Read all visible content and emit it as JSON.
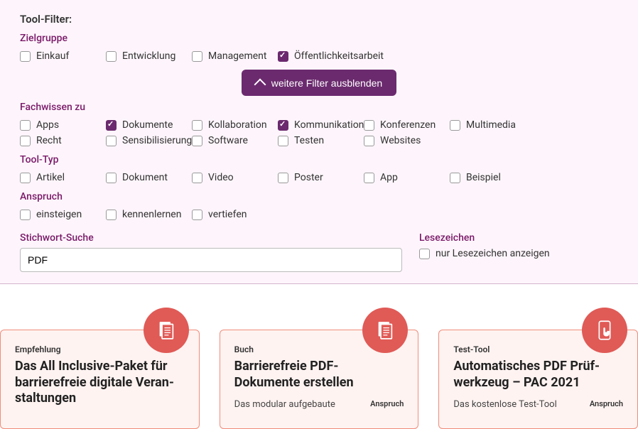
{
  "filter_title": "Tool-Filter:",
  "zielgruppe": {
    "label": "Zielgruppe",
    "items": [
      {
        "label": "Einkauf",
        "checked": false
      },
      {
        "label": "Entwicklung",
        "checked": false
      },
      {
        "label": "Management",
        "checked": false
      },
      {
        "label": "Öffentlichkeitsarbeit",
        "checked": true
      }
    ]
  },
  "toggle_label": "weitere Filter ausblenden",
  "fachwissen": {
    "label": "Fachwissen zu",
    "items": [
      {
        "label": "Apps",
        "checked": false
      },
      {
        "label": "Dokumente",
        "checked": true
      },
      {
        "label": "Kollaboration",
        "checked": false
      },
      {
        "label": "Kommunikation",
        "checked": true
      },
      {
        "label": "Konferenzen",
        "checked": false
      },
      {
        "label": "Multimedia",
        "checked": false
      },
      {
        "label": "Recht",
        "checked": false
      },
      {
        "label": "Sensibilisierung",
        "checked": false
      },
      {
        "label": "Software",
        "checked": false
      },
      {
        "label": "Testen",
        "checked": false
      },
      {
        "label": "Websites",
        "checked": false
      }
    ]
  },
  "tooltyp": {
    "label": "Tool-Typ",
    "items": [
      {
        "label": "Artikel",
        "checked": false
      },
      {
        "label": "Dokument",
        "checked": false
      },
      {
        "label": "Video",
        "checked": false
      },
      {
        "label": "Poster",
        "checked": false
      },
      {
        "label": "App",
        "checked": false
      },
      {
        "label": "Beispiel",
        "checked": false
      }
    ]
  },
  "anspruch": {
    "label": "Anspruch",
    "items": [
      {
        "label": "einsteigen",
        "checked": false
      },
      {
        "label": "kennenlernen",
        "checked": false
      },
      {
        "label": "vertiefen",
        "checked": false
      }
    ]
  },
  "search": {
    "label": "Stichwort-Suche",
    "value": "PDF"
  },
  "bookmark": {
    "label": "Lesezeichen",
    "checkbox_label": "nur Lesezeichen anzeigen",
    "checked": false
  },
  "anspruch_label": "Anspruch",
  "cards": [
    {
      "kicker": "Empfehlung",
      "title": "Das All Inclusive-Paket für barrierefreie digitale Veran­staltungen",
      "desc": "",
      "icon": "doc"
    },
    {
      "kicker": "Buch",
      "title": "Barrierefreie PDF-Dokumente erstellen",
      "desc": "Das modular aufgebaute",
      "icon": "doc"
    },
    {
      "kicker": "Test-Tool",
      "title": "Automatisches PDF Prüf­werkzeug – PAC 2021",
      "desc": "Das kostenlose Test-Tool",
      "icon": "touch"
    }
  ],
  "colors": {
    "panel_bg": "#fdf5fb",
    "accent": "#6b2a6e",
    "section_label": "#7a1969",
    "card_bg": "#fef3f1",
    "card_border": "#f08c7a",
    "card_icon_bg": "#e05a56"
  }
}
